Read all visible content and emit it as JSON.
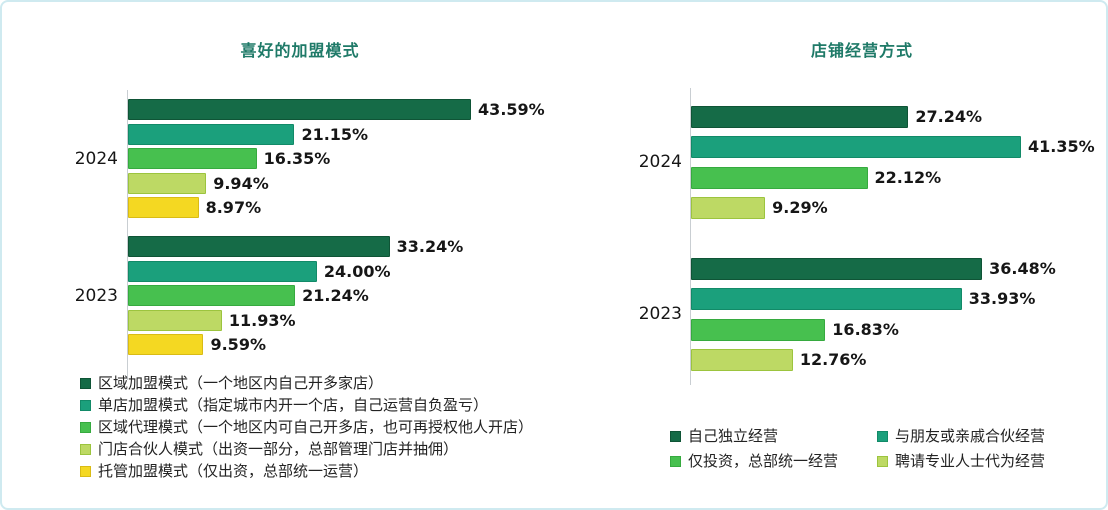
{
  "palette": {
    "title_color": "#1f7a68",
    "axis_color": "#c9ced2",
    "label_color": "#161616",
    "frame_color": "#cfeaf0"
  },
  "chart_data": [
    {
      "type": "bar",
      "orientation": "horizontal",
      "title": "喜好的加盟模式",
      "title_color": "#1f7a68",
      "categories": [
        "2024",
        "2023"
      ],
      "series": [
        {
          "name": "区域加盟模式（一个地区内自己开多家店）",
          "color": "#156b47",
          "border": "#0f5436",
          "values": [
            43.59,
            33.24
          ]
        },
        {
          "name": "单店加盟模式（指定城市内开一个店，自己运营自负盈亏）",
          "color": "#1ba07c",
          "border": "#128a68",
          "values": [
            21.15,
            24.0
          ]
        },
        {
          "name": "区域代理模式（一个地区内可自己开多店，也可再授权他人开店）",
          "color": "#47c04f",
          "border": "#36aa3f",
          "values": [
            16.35,
            21.24
          ]
        },
        {
          "name": "门店合伙人模式（出资一部分，总部管理门店并抽佣）",
          "color": "#bdd964",
          "border": "#9cc43e",
          "values": [
            9.94,
            11.93
          ]
        },
        {
          "name": "托管加盟模式（仅出资，总部统一运营）",
          "color": "#f4d822",
          "border": "#d9bb15",
          "values": [
            8.97,
            9.59
          ]
        }
      ],
      "value_suffix": "%",
      "xlim": [
        0,
        45
      ],
      "grid": false,
      "legend_position": "bottom-left",
      "legend_columns": 1
    },
    {
      "type": "bar",
      "orientation": "horizontal",
      "title": "店铺经营方式",
      "title_color": "#1f7a68",
      "categories": [
        "2024",
        "2023"
      ],
      "series": [
        {
          "name": "自己独立经营",
          "color": "#156b47",
          "border": "#0f5436",
          "values": [
            27.24,
            36.48
          ]
        },
        {
          "name": "与朋友或亲戚合伙经营",
          "color": "#1ba07c",
          "border": "#128a68",
          "values": [
            41.35,
            33.93
          ]
        },
        {
          "name": "仅投资，总部统一经营",
          "color": "#47c04f",
          "border": "#36aa3f",
          "values": [
            22.12,
            16.83
          ]
        },
        {
          "name": "聘请专业人士代为经营",
          "color": "#bdd964",
          "border": "#9cc43e",
          "values": [
            9.29,
            12.76
          ]
        }
      ],
      "value_suffix": "%",
      "xlim": [
        0,
        45
      ],
      "grid": false,
      "legend_position": "bottom",
      "legend_columns": 2
    }
  ]
}
